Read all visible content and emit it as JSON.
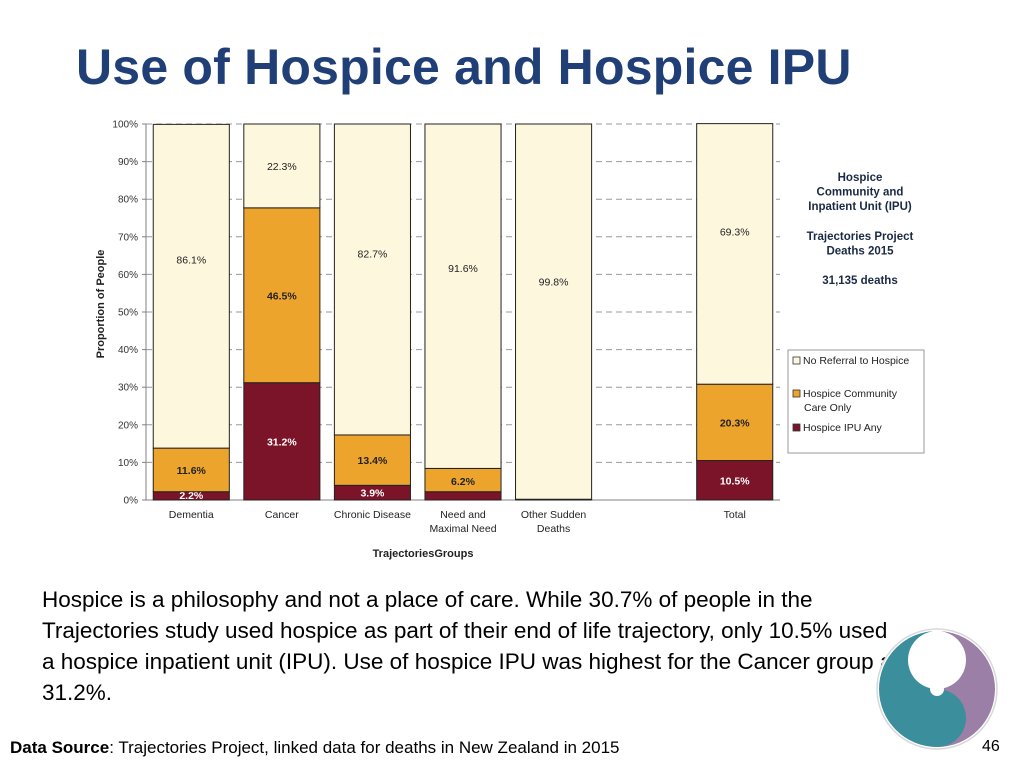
{
  "title": "Use of Hospice and Hospice IPU",
  "chart_data": {
    "type": "bar",
    "stacked": true,
    "normalized": true,
    "xlabel": "TrajectoriesGroups",
    "ylabel": "Proportion of People",
    "ylim": [
      0,
      100
    ],
    "yticks": [
      "0%",
      "10%",
      "20%",
      "30%",
      "40%",
      "50%",
      "60%",
      "70%",
      "80%",
      "90%",
      "100%"
    ],
    "categories": [
      {
        "label": [
          "Dementia"
        ],
        "values": [
          2.2,
          11.6,
          86.1
        ],
        "labels": [
          "2.2%",
          "11.6%",
          "86.1%"
        ]
      },
      {
        "label": [
          "Cancer"
        ],
        "values": [
          31.2,
          46.5,
          22.3
        ],
        "labels": [
          "31.2%",
          "46.5%",
          "22.3%"
        ]
      },
      {
        "label": [
          "Chronic Disease"
        ],
        "values": [
          3.9,
          13.4,
          82.7
        ],
        "labels": [
          "3.9%",
          "13.4%",
          "82.7%"
        ]
      },
      {
        "label": [
          "Need and",
          "Maximal Need"
        ],
        "values": [
          2.2,
          6.2,
          91.6
        ],
        "labels": [
          "",
          "6.2%",
          "91.6%"
        ]
      },
      {
        "label": [
          "Other Sudden",
          "Deaths"
        ],
        "values": [
          0.0,
          0.2,
          99.8
        ],
        "labels": [
          "",
          "",
          "99.8%"
        ]
      },
      {
        "label": [
          ""
        ],
        "values": [
          0,
          0,
          0
        ],
        "labels": [
          "",
          "",
          ""
        ]
      },
      {
        "label": [
          "Total"
        ],
        "values": [
          10.5,
          20.3,
          69.3
        ],
        "labels": [
          "10.5%",
          "20.3%",
          "69.3%"
        ]
      }
    ],
    "series": [
      {
        "name": "Hospice IPU Any",
        "color": "#7b1428"
      },
      {
        "name": "Hospice Community Care Only",
        "color": "#eda42c"
      },
      {
        "name": "No Referral to Hospice",
        "color": "#fdf7de"
      }
    ],
    "legend": {
      "position": "right",
      "entries": [
        {
          "lines": [
            "No Referral to Hospice"
          ],
          "color": "#fdf7de"
        },
        {
          "lines": [
            "Hospice Community",
            "Care Only"
          ],
          "color": "#eda42c"
        },
        {
          "lines": [
            "Hospice IPU Any"
          ],
          "color": "#7b1428"
        }
      ]
    },
    "annotation": {
      "heading": [
        "Hospice",
        "Community and",
        "Inpatient Unit (IPU)"
      ],
      "project": [
        "Trajectories Project",
        "Deaths 2015"
      ],
      "deaths": "31,135 deaths"
    },
    "grid": true
  },
  "body_text": "Hospice is a philosophy and not a place of care. While 30.7% of people in the Trajectories study used hospice as part of their end of life trajectory, only 10.5% used a hospice inpatient unit (IPU). Use of hospice IPU was highest for the Cancer group at 31.2%.",
  "source": {
    "label": "Data Source",
    "text": ": Trajectories Project, linked data for deaths in New Zealand in 2015"
  },
  "page_number": "46",
  "colors": {
    "title": "#1f3f76",
    "ipu": "#7b1428",
    "community": "#eda42c",
    "no_referral": "#fdf7de",
    "logo_teal": "#3b8e9c",
    "logo_purple": "#9c7fa6"
  }
}
